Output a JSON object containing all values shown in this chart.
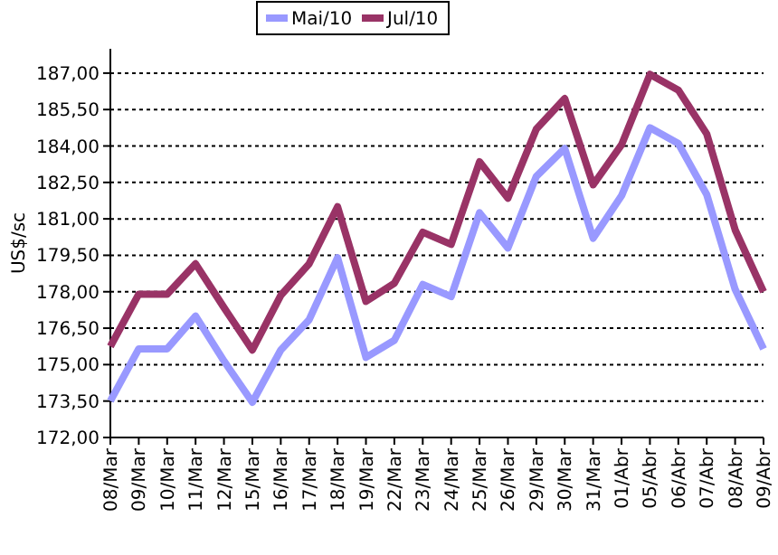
{
  "chart_data": {
    "type": "line",
    "ylabel": "US$/sc",
    "categories": [
      "08/Mar",
      "09/Mar",
      "10/Mar",
      "11/Mar",
      "12/Mar",
      "15/Mar",
      "16/Mar",
      "17/Mar",
      "18/Mar",
      "19/Mar",
      "22/Mar",
      "23/Mar",
      "24/Mar",
      "25/Mar",
      "26/Mar",
      "29/Mar",
      "30/Mar",
      "31/Mar",
      "01/Abr",
      "05/Abr",
      "06/Abr",
      "07/Abr",
      "08/Abr",
      "09/Abr"
    ],
    "series": [
      {
        "name": "Mai/10",
        "color": "#9999ff",
        "values": [
          173.5,
          175.65,
          175.65,
          177,
          175.15,
          173.45,
          175.6,
          176.85,
          179.4,
          175.3,
          176,
          178.3,
          177.8,
          181.25,
          179.8,
          182.75,
          183.9,
          180.2,
          181.95,
          184.75,
          184.1,
          182,
          178.1,
          175.65
        ]
      },
      {
        "name": "Jul/10",
        "color": "#993366",
        "values": [
          175.75,
          177.9,
          177.9,
          179.15,
          177.35,
          175.6,
          177.85,
          179.15,
          181.5,
          177.6,
          178.35,
          180.45,
          179.95,
          183.35,
          181.85,
          184.7,
          185.95,
          182.4,
          184.05,
          186.95,
          186.3,
          184.5,
          180.55,
          178
        ]
      }
    ],
    "ylim": [
      172,
      188
    ],
    "yticks": [
      {
        "value": 172,
        "label": "172,00"
      },
      {
        "value": 173.5,
        "label": "173,50"
      },
      {
        "value": 175,
        "label": "175,00"
      },
      {
        "value": 176.5,
        "label": "176,50"
      },
      {
        "value": 178,
        "label": "178,00"
      },
      {
        "value": 179.5,
        "label": "179,50"
      },
      {
        "value": 181,
        "label": "181,00"
      },
      {
        "value": 182.5,
        "label": "182,50"
      },
      {
        "value": 184,
        "label": "184,00"
      },
      {
        "value": 185.5,
        "label": "185,50"
      },
      {
        "value": 187,
        "label": "187,00"
      }
    ],
    "grid": "y",
    "legend": "top",
    "marker": "none",
    "line_style": "solid"
  }
}
